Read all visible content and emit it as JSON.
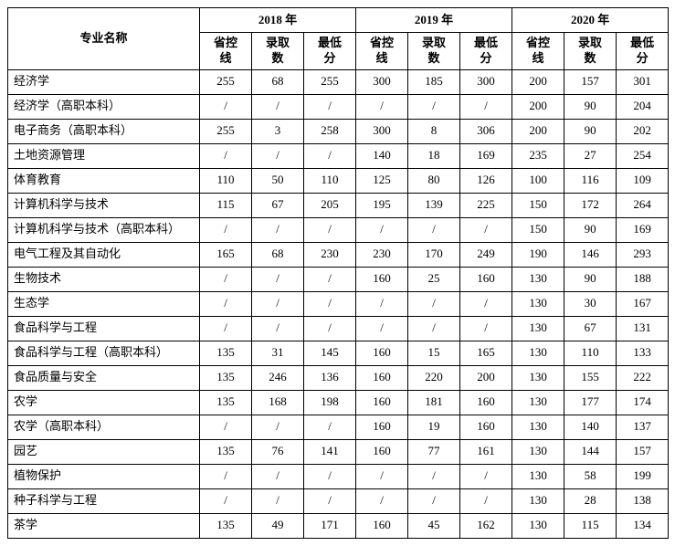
{
  "header": {
    "major_label": "专业名称",
    "year_labels": [
      "2018 年",
      "2019 年",
      "2020 年"
    ],
    "sub_labels": [
      "省控线",
      "录取数",
      "最低分"
    ]
  },
  "rows": [
    {
      "major": "经济学",
      "v": [
        "255",
        "68",
        "255",
        "300",
        "185",
        "300",
        "200",
        "157",
        "301"
      ]
    },
    {
      "major": "经济学（高职本科）",
      "v": [
        "/",
        "/",
        "/",
        "/",
        "/",
        "/",
        "200",
        "90",
        "204"
      ]
    },
    {
      "major": "电子商务（高职本科）",
      "v": [
        "255",
        "3",
        "258",
        "300",
        "8",
        "306",
        "200",
        "90",
        "202"
      ]
    },
    {
      "major": "土地资源管理",
      "v": [
        "/",
        "/",
        "/",
        "140",
        "18",
        "169",
        "235",
        "27",
        "254"
      ]
    },
    {
      "major": "体育教育",
      "v": [
        "110",
        "50",
        "110",
        "125",
        "80",
        "126",
        "100",
        "116",
        "109"
      ]
    },
    {
      "major": "计算机科学与技术",
      "v": [
        "115",
        "67",
        "205",
        "195",
        "139",
        "225",
        "150",
        "172",
        "264"
      ]
    },
    {
      "major": "计算机科学与技术（高职本科）",
      "v": [
        "/",
        "/",
        "/",
        "/",
        "/",
        "/",
        "150",
        "90",
        "169"
      ]
    },
    {
      "major": "电气工程及其自动化",
      "v": [
        "165",
        "68",
        "230",
        "230",
        "170",
        "249",
        "190",
        "146",
        "293"
      ]
    },
    {
      "major": "生物技术",
      "v": [
        "/",
        "/",
        "/",
        "160",
        "25",
        "160",
        "130",
        "90",
        "188"
      ]
    },
    {
      "major": "生态学",
      "v": [
        "/",
        "/",
        "/",
        "/",
        "/",
        "/",
        "130",
        "30",
        "167"
      ]
    },
    {
      "major": "食品科学与工程",
      "v": [
        "/",
        "/",
        "/",
        "/",
        "/",
        "/",
        "130",
        "67",
        "131"
      ]
    },
    {
      "major": "食品科学与工程（高职本科）",
      "v": [
        "135",
        "31",
        "145",
        "160",
        "15",
        "165",
        "130",
        "110",
        "133"
      ]
    },
    {
      "major": "食品质量与安全",
      "v": [
        "135",
        "246",
        "136",
        "160",
        "220",
        "200",
        "130",
        "155",
        "222"
      ]
    },
    {
      "major": "农学",
      "v": [
        "135",
        "168",
        "198",
        "160",
        "181",
        "160",
        "130",
        "177",
        "174"
      ]
    },
    {
      "major": "农学（高职本科）",
      "v": [
        "/",
        "/",
        "/",
        "160",
        "19",
        "160",
        "130",
        "140",
        "137"
      ]
    },
    {
      "major": "园艺",
      "v": [
        "135",
        "76",
        "141",
        "160",
        "77",
        "161",
        "130",
        "144",
        "157"
      ]
    },
    {
      "major": "植物保护",
      "v": [
        "/",
        "/",
        "/",
        "/",
        "/",
        "/",
        "130",
        "58",
        "199"
      ]
    },
    {
      "major": "种子科学与工程",
      "v": [
        "/",
        "/",
        "/",
        "/",
        "/",
        "/",
        "130",
        "28",
        "138"
      ]
    },
    {
      "major": "茶学",
      "v": [
        "135",
        "49",
        "171",
        "160",
        "45",
        "162",
        "130",
        "115",
        "134"
      ]
    }
  ]
}
